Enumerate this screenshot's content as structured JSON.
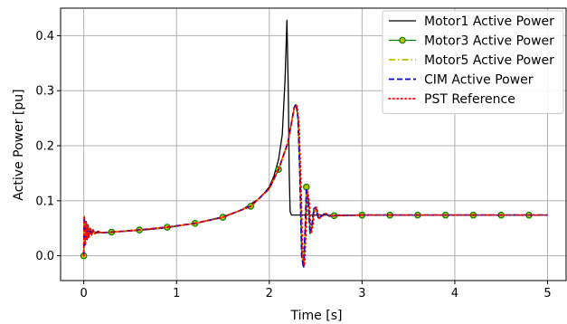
{
  "chart_data": {
    "type": "line",
    "title": "",
    "xlabel": "Time [s]",
    "ylabel": "Active Power [pu]",
    "xlim": [
      -0.25,
      5.2
    ],
    "ylim": [
      -0.045,
      0.45
    ],
    "xticks": [
      0,
      1,
      2,
      3,
      4,
      5
    ],
    "yticks": [
      0.0,
      0.1,
      0.2,
      0.3,
      0.4
    ],
    "ytick_labels": [
      "0.0",
      "0.1",
      "0.2",
      "0.3",
      "0.4"
    ],
    "grid": true,
    "legend_position": "top-right",
    "series": [
      {
        "name": "Motor1 Active Power",
        "color": "#000000",
        "style": "solid",
        "marker": "none",
        "points": [
          [
            0,
            0.062
          ],
          [
            0.01,
            0.045
          ],
          [
            0.02,
            0.052
          ],
          [
            0.03,
            0.036
          ],
          [
            0.04,
            0.048
          ],
          [
            0.05,
            0.04
          ],
          [
            0.06,
            0.046
          ],
          [
            0.08,
            0.041
          ],
          [
            0.1,
            0.044
          ],
          [
            0.15,
            0.042
          ],
          [
            0.3,
            0.043
          ],
          [
            0.6,
            0.046
          ],
          [
            0.9,
            0.051
          ],
          [
            1.2,
            0.059
          ],
          [
            1.5,
            0.071
          ],
          [
            1.7,
            0.083
          ],
          [
            1.9,
            0.105
          ],
          [
            2.0,
            0.125
          ],
          [
            2.05,
            0.145
          ],
          [
            2.1,
            0.175
          ],
          [
            2.14,
            0.22
          ],
          [
            2.17,
            0.32
          ],
          [
            2.19,
            0.428
          ],
          [
            2.205,
            0.3
          ],
          [
            2.215,
            0.15
          ],
          [
            2.225,
            0.08
          ],
          [
            2.24,
            0.074
          ],
          [
            2.4,
            0.074
          ],
          [
            3.0,
            0.074
          ],
          [
            4.0,
            0.074
          ],
          [
            5.0,
            0.074
          ]
        ]
      },
      {
        "name": "Motor3 Active Power",
        "color": "#008000",
        "style": "solid",
        "marker": "circle",
        "markers": [
          [
            0,
            0.0
          ],
          [
            0.3,
            0.043
          ],
          [
            0.6,
            0.047
          ],
          [
            0.9,
            0.052
          ],
          [
            1.2,
            0.059
          ],
          [
            1.5,
            0.07
          ],
          [
            1.8,
            0.09
          ],
          [
            2.1,
            0.157
          ],
          [
            2.4,
            0.125
          ],
          [
            2.7,
            0.073
          ],
          [
            3.0,
            0.074
          ],
          [
            3.3,
            0.074
          ],
          [
            3.6,
            0.074
          ],
          [
            3.9,
            0.074
          ],
          [
            4.2,
            0.074
          ],
          [
            4.5,
            0.074
          ],
          [
            4.8,
            0.074
          ]
        ],
        "points": [
          [
            0,
            0.0
          ],
          [
            0.005,
            0.072
          ],
          [
            0.015,
            0.02
          ],
          [
            0.025,
            0.062
          ],
          [
            0.035,
            0.03
          ],
          [
            0.045,
            0.056
          ],
          [
            0.055,
            0.034
          ],
          [
            0.07,
            0.051
          ],
          [
            0.085,
            0.037
          ],
          [
            0.1,
            0.047
          ],
          [
            0.12,
            0.04
          ],
          [
            0.15,
            0.044
          ],
          [
            0.2,
            0.042
          ],
          [
            0.3,
            0.043
          ],
          [
            0.6,
            0.047
          ],
          [
            0.9,
            0.052
          ],
          [
            1.2,
            0.059
          ],
          [
            1.5,
            0.07
          ],
          [
            1.8,
            0.09
          ],
          [
            2.0,
            0.122
          ],
          [
            2.1,
            0.157
          ],
          [
            2.2,
            0.205
          ],
          [
            2.27,
            0.27
          ],
          [
            2.29,
            0.275
          ],
          [
            2.31,
            0.25
          ],
          [
            2.33,
            0.15
          ],
          [
            2.35,
            0.0
          ],
          [
            2.37,
            -0.02
          ],
          [
            2.39,
            0.06
          ],
          [
            2.4,
            0.125
          ],
          [
            2.42,
            0.1
          ],
          [
            2.44,
            0.04
          ],
          [
            2.46,
            0.055
          ],
          [
            2.48,
            0.085
          ],
          [
            2.5,
            0.088
          ],
          [
            2.53,
            0.068
          ],
          [
            2.56,
            0.072
          ],
          [
            2.6,
            0.077
          ],
          [
            2.65,
            0.072
          ],
          [
            2.7,
            0.073
          ],
          [
            3.0,
            0.074
          ],
          [
            4.0,
            0.074
          ],
          [
            5.0,
            0.074
          ]
        ]
      },
      {
        "name": "Motor5 Active Power",
        "color": "#bfbf00",
        "style": "dashdot",
        "marker": "none",
        "points": [
          [
            0,
            0.0
          ],
          [
            0.005,
            0.072
          ],
          [
            0.015,
            0.02
          ],
          [
            0.025,
            0.062
          ],
          [
            0.035,
            0.03
          ],
          [
            0.045,
            0.056
          ],
          [
            0.055,
            0.034
          ],
          [
            0.07,
            0.051
          ],
          [
            0.085,
            0.037
          ],
          [
            0.1,
            0.047
          ],
          [
            0.12,
            0.04
          ],
          [
            0.15,
            0.044
          ],
          [
            0.2,
            0.042
          ],
          [
            0.3,
            0.043
          ],
          [
            0.6,
            0.047
          ],
          [
            0.9,
            0.052
          ],
          [
            1.2,
            0.059
          ],
          [
            1.5,
            0.07
          ],
          [
            1.8,
            0.09
          ],
          [
            2.0,
            0.122
          ],
          [
            2.1,
            0.157
          ],
          [
            2.2,
            0.205
          ],
          [
            2.27,
            0.27
          ],
          [
            2.29,
            0.275
          ],
          [
            2.31,
            0.25
          ],
          [
            2.33,
            0.15
          ],
          [
            2.35,
            0.0
          ],
          [
            2.37,
            -0.02
          ],
          [
            2.39,
            0.06
          ],
          [
            2.4,
            0.122
          ],
          [
            2.42,
            0.1
          ],
          [
            2.44,
            0.04
          ],
          [
            2.46,
            0.055
          ],
          [
            2.48,
            0.085
          ],
          [
            2.5,
            0.088
          ],
          [
            2.53,
            0.068
          ],
          [
            2.56,
            0.072
          ],
          [
            2.6,
            0.077
          ],
          [
            2.65,
            0.072
          ],
          [
            2.7,
            0.073
          ],
          [
            3.0,
            0.074
          ],
          [
            4.0,
            0.074
          ],
          [
            5.0,
            0.074
          ]
        ]
      },
      {
        "name": "CIM Active Power",
        "color": "#0000cc",
        "style": "dashed",
        "marker": "none",
        "points": [
          [
            0,
            0.0
          ],
          [
            0.005,
            0.072
          ],
          [
            0.015,
            0.02
          ],
          [
            0.025,
            0.062
          ],
          [
            0.035,
            0.03
          ],
          [
            0.045,
            0.056
          ],
          [
            0.055,
            0.034
          ],
          [
            0.07,
            0.051
          ],
          [
            0.085,
            0.037
          ],
          [
            0.1,
            0.047
          ],
          [
            0.12,
            0.04
          ],
          [
            0.15,
            0.044
          ],
          [
            0.2,
            0.042
          ],
          [
            0.3,
            0.043
          ],
          [
            0.6,
            0.047
          ],
          [
            0.9,
            0.052
          ],
          [
            1.2,
            0.059
          ],
          [
            1.5,
            0.07
          ],
          [
            1.8,
            0.09
          ],
          [
            2.0,
            0.122
          ],
          [
            2.1,
            0.157
          ],
          [
            2.2,
            0.205
          ],
          [
            2.27,
            0.27
          ],
          [
            2.29,
            0.276
          ],
          [
            2.31,
            0.25
          ],
          [
            2.33,
            0.15
          ],
          [
            2.35,
            0.0
          ],
          [
            2.37,
            -0.022
          ],
          [
            2.39,
            0.06
          ],
          [
            2.4,
            0.12
          ],
          [
            2.42,
            0.1
          ],
          [
            2.44,
            0.04
          ],
          [
            2.46,
            0.055
          ],
          [
            2.48,
            0.085
          ],
          [
            2.5,
            0.088
          ],
          [
            2.53,
            0.068
          ],
          [
            2.56,
            0.072
          ],
          [
            2.6,
            0.077
          ],
          [
            2.65,
            0.072
          ],
          [
            2.7,
            0.073
          ],
          [
            3.0,
            0.074
          ],
          [
            4.0,
            0.074
          ],
          [
            5.0,
            0.074
          ]
        ]
      },
      {
        "name": "PST Reference",
        "color": "#ff0000",
        "style": "dotted",
        "marker": "none",
        "points": [
          [
            0,
            0.0
          ],
          [
            0.005,
            0.072
          ],
          [
            0.015,
            0.02
          ],
          [
            0.025,
            0.062
          ],
          [
            0.035,
            0.03
          ],
          [
            0.045,
            0.056
          ],
          [
            0.055,
            0.034
          ],
          [
            0.07,
            0.051
          ],
          [
            0.085,
            0.037
          ],
          [
            0.1,
            0.047
          ],
          [
            0.12,
            0.04
          ],
          [
            0.15,
            0.044
          ],
          [
            0.2,
            0.042
          ],
          [
            0.3,
            0.043
          ],
          [
            0.6,
            0.047
          ],
          [
            0.9,
            0.052
          ],
          [
            1.2,
            0.059
          ],
          [
            1.5,
            0.07
          ],
          [
            1.8,
            0.09
          ],
          [
            2.0,
            0.122
          ],
          [
            2.1,
            0.157
          ],
          [
            2.2,
            0.205
          ],
          [
            2.27,
            0.27
          ],
          [
            2.3,
            0.272
          ],
          [
            2.32,
            0.24
          ],
          [
            2.34,
            0.14
          ],
          [
            2.36,
            0.0
          ],
          [
            2.38,
            -0.018
          ],
          [
            2.4,
            0.06
          ],
          [
            2.41,
            0.118
          ],
          [
            2.43,
            0.1
          ],
          [
            2.45,
            0.04
          ],
          [
            2.47,
            0.055
          ],
          [
            2.49,
            0.085
          ],
          [
            2.51,
            0.088
          ],
          [
            2.54,
            0.068
          ],
          [
            2.57,
            0.072
          ],
          [
            2.61,
            0.077
          ],
          [
            2.66,
            0.072
          ],
          [
            2.71,
            0.073
          ],
          [
            3.0,
            0.074
          ],
          [
            4.0,
            0.074
          ],
          [
            5.0,
            0.074
          ]
        ]
      }
    ]
  }
}
